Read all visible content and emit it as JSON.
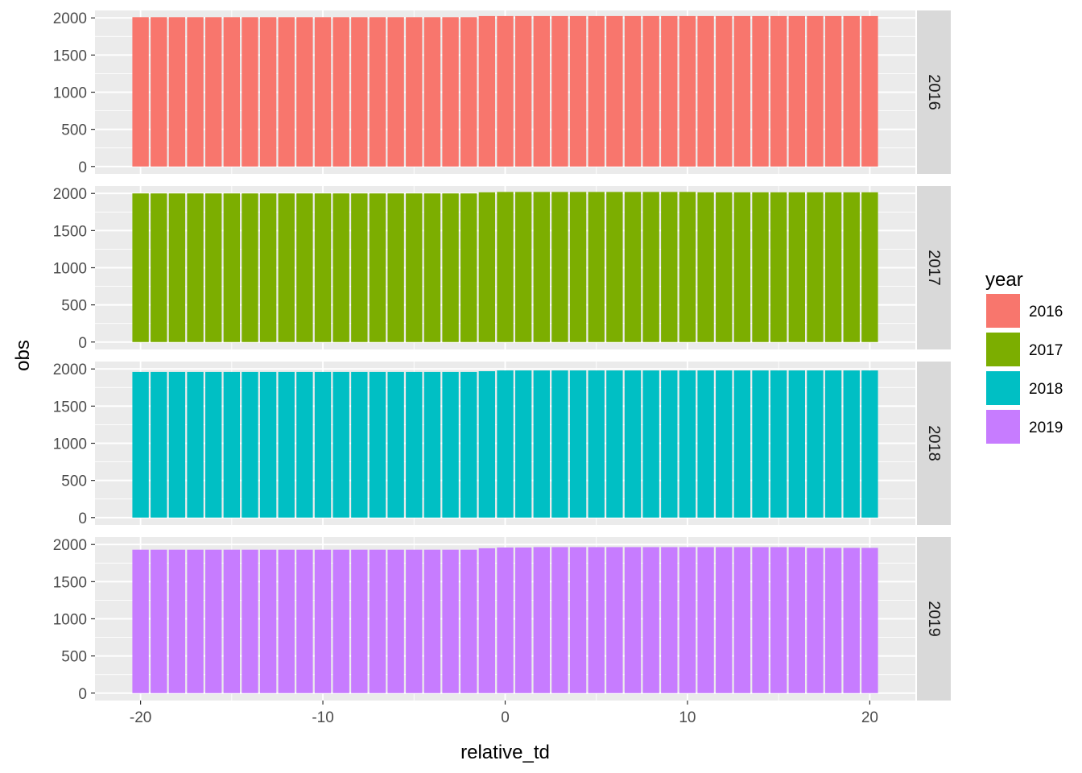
{
  "chart_data": {
    "type": "bar",
    "facet_by": "year",
    "xlabel": "relative_td",
    "ylabel": "obs",
    "xlim": [
      -22.5,
      22.5
    ],
    "x_ticks": [
      -20,
      -10,
      0,
      10,
      20
    ],
    "ylim": [
      -100,
      2100
    ],
    "y_ticks": [
      0,
      500,
      1000,
      1500,
      2000
    ],
    "grid": true,
    "legend": {
      "title": "year",
      "placement": "right",
      "entries": [
        {
          "label": "2016",
          "color": "#F8766D"
        },
        {
          "label": "2017",
          "color": "#7CAE00"
        },
        {
          "label": "2018",
          "color": "#00BFC4"
        },
        {
          "label": "2019",
          "color": "#C77CFF"
        }
      ]
    },
    "x": [
      -20,
      -19,
      -18,
      -17,
      -16,
      -15,
      -14,
      -13,
      -12,
      -11,
      -10,
      -9,
      -8,
      -7,
      -6,
      -5,
      -4,
      -3,
      -2,
      -1,
      0,
      1,
      2,
      3,
      4,
      5,
      6,
      7,
      8,
      9,
      10,
      11,
      12,
      13,
      14,
      15,
      16,
      17,
      18,
      19,
      20
    ],
    "panels": [
      {
        "strip": "2016",
        "color": "#F8766D",
        "values": [
          2010,
          2010,
          2010,
          2010,
          2010,
          2010,
          2010,
          2010,
          2010,
          2010,
          2010,
          2010,
          2010,
          2010,
          2010,
          2010,
          2010,
          2010,
          2010,
          2025,
          2025,
          2025,
          2025,
          2025,
          2025,
          2025,
          2025,
          2025,
          2025,
          2025,
          2025,
          2025,
          2025,
          2025,
          2025,
          2025,
          2025,
          2025,
          2025,
          2025,
          2025
        ]
      },
      {
        "strip": "2017",
        "color": "#7CAE00",
        "values": [
          2000,
          2000,
          2000,
          2000,
          2000,
          2000,
          2000,
          2000,
          2000,
          2000,
          2000,
          2000,
          2000,
          2000,
          2000,
          2000,
          2000,
          2000,
          2000,
          2015,
          2020,
          2020,
          2020,
          2020,
          2020,
          2020,
          2020,
          2020,
          2020,
          2020,
          2020,
          2015,
          2015,
          2015,
          2015,
          2015,
          2015,
          2015,
          2015,
          2015,
          2015
        ]
      },
      {
        "strip": "2018",
        "color": "#00BFC4",
        "values": [
          1960,
          1960,
          1960,
          1960,
          1960,
          1960,
          1960,
          1960,
          1960,
          1960,
          1960,
          1960,
          1960,
          1960,
          1960,
          1960,
          1960,
          1960,
          1960,
          1970,
          1980,
          1980,
          1980,
          1980,
          1980,
          1980,
          1980,
          1980,
          1980,
          1980,
          1980,
          1980,
          1980,
          1980,
          1980,
          1980,
          1980,
          1980,
          1980,
          1980,
          1980
        ]
      },
      {
        "strip": "2019",
        "color": "#C77CFF",
        "values": [
          1930,
          1930,
          1930,
          1930,
          1930,
          1930,
          1930,
          1930,
          1930,
          1930,
          1930,
          1930,
          1930,
          1930,
          1930,
          1930,
          1930,
          1930,
          1930,
          1950,
          1960,
          1960,
          1965,
          1965,
          1965,
          1965,
          1965,
          1965,
          1965,
          1965,
          1965,
          1965,
          1965,
          1965,
          1965,
          1965,
          1965,
          1955,
          1955,
          1955,
          1955
        ]
      }
    ]
  }
}
